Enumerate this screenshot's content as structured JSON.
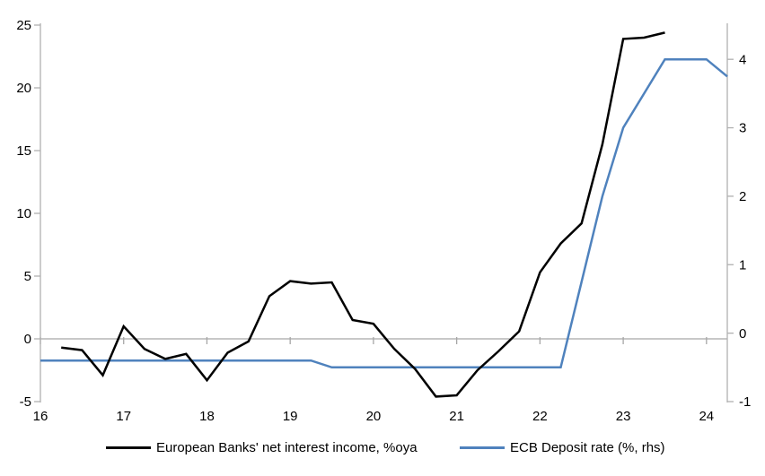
{
  "chart_data": {
    "type": "line",
    "title": "",
    "x_axis": {
      "range": [
        16,
        24.25
      ],
      "ticks": [
        16,
        17,
        18,
        19,
        20,
        21,
        22,
        23,
        24
      ]
    },
    "left_axis": {
      "range": [
        -5,
        25
      ],
      "ticks": [
        25,
        20,
        15,
        10,
        5,
        0,
        -5
      ]
    },
    "right_axis": {
      "range": [
        -1,
        4.5
      ],
      "ticks": [
        4,
        3,
        2,
        1,
        0,
        -1
      ]
    },
    "grid": "zero-line-only",
    "legend_position": "bottom",
    "series": [
      {
        "name": "European Banks' net interest income, %oya",
        "axis": "left",
        "color": "#000000",
        "points": [
          [
            16.25,
            -0.7
          ],
          [
            16.5,
            -0.9
          ],
          [
            16.75,
            -2.9
          ],
          [
            17,
            1.0
          ],
          [
            17.25,
            -0.8
          ],
          [
            17.5,
            -1.6
          ],
          [
            17.75,
            -1.2
          ],
          [
            18,
            -3.3
          ],
          [
            18.25,
            -1.1
          ],
          [
            18.5,
            -0.2
          ],
          [
            18.75,
            3.4
          ],
          [
            19,
            4.6
          ],
          [
            19.25,
            4.4
          ],
          [
            19.5,
            4.5
          ],
          [
            19.75,
            1.5
          ],
          [
            20,
            1.2
          ],
          [
            20.25,
            -0.8
          ],
          [
            20.5,
            -2.4
          ],
          [
            20.75,
            -4.6
          ],
          [
            21,
            -4.5
          ],
          [
            21.25,
            -2.5
          ],
          [
            21.5,
            -1.0
          ],
          [
            21.75,
            0.6
          ],
          [
            22,
            5.3
          ],
          [
            22.25,
            7.6
          ],
          [
            22.5,
            9.2
          ],
          [
            22.75,
            15.5
          ],
          [
            23,
            23.9
          ],
          [
            23.25,
            24.0
          ],
          [
            23.5,
            24.4
          ]
        ]
      },
      {
        "name": "ECB Deposit rate (%, rhs)",
        "axis": "right",
        "color": "#4f82bd",
        "points": [
          [
            16,
            -0.4
          ],
          [
            19.25,
            -0.4
          ],
          [
            19.5,
            -0.5
          ],
          [
            22.25,
            -0.5
          ],
          [
            22.5,
            0.75
          ],
          [
            22.75,
            2.0
          ],
          [
            23,
            3.0
          ],
          [
            23.25,
            3.5
          ],
          [
            23.5,
            4.0
          ],
          [
            23.75,
            4.0
          ],
          [
            24,
            4.0
          ],
          [
            24.25,
            3.75
          ]
        ]
      }
    ],
    "colors": {
      "axis": "#b0b0b0",
      "zero_line": "#a6a6a6",
      "text": "#000000"
    }
  }
}
